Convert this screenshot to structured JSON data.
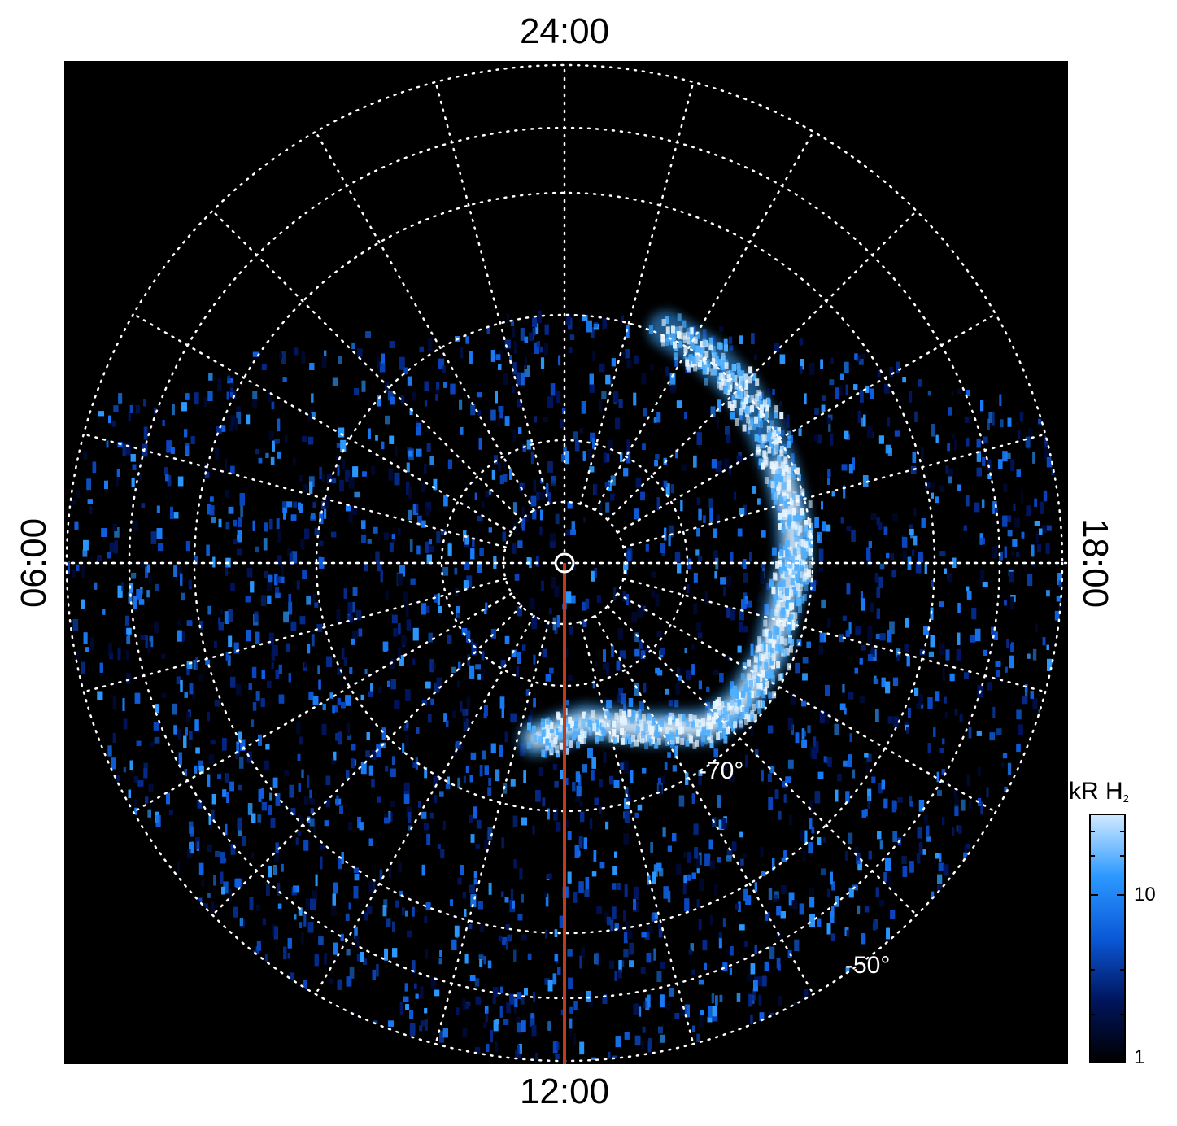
{
  "local_time_labels": {
    "top": "24:00",
    "bottom": "12:00",
    "left": "06:00",
    "right": "18:00"
  },
  "latitude_labels": [
    {
      "text": "-70°"
    },
    {
      "text": "-50°"
    }
  ],
  "colorbar": {
    "unit": "kR H",
    "unit_subscript": "2",
    "ticks": [
      "10",
      "1"
    ],
    "scale": "log",
    "colors": [
      "#000000",
      "#00155e",
      "#0a58d8",
      "#2b98ff",
      "#cfe9ff"
    ]
  },
  "colors": {
    "background": "#000000",
    "grid": "#ffffff",
    "meridian_line": "#c0391b"
  }
}
